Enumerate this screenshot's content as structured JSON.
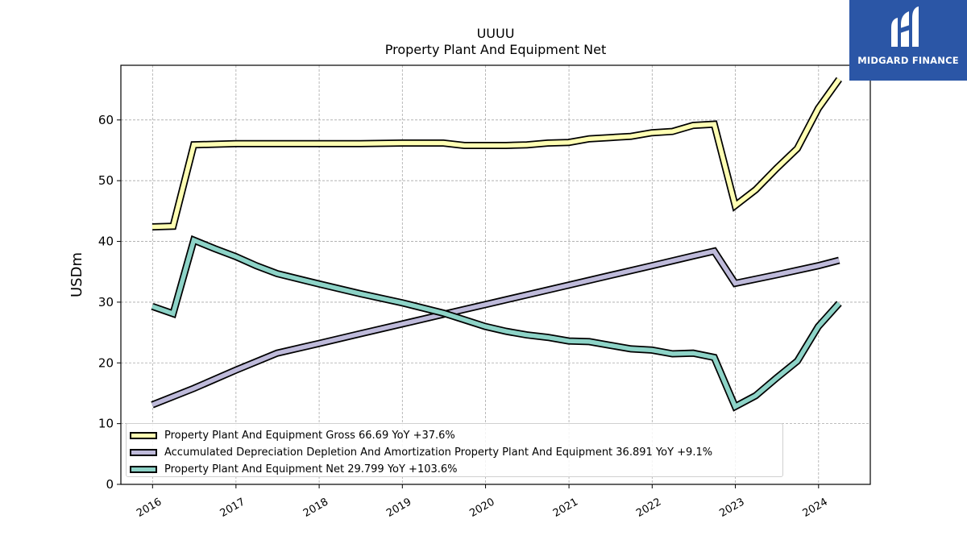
{
  "logo": {
    "text": "MIDGARD FINANCE"
  },
  "chart_data": {
    "type": "line",
    "title": "UUUU",
    "subtitle": "Property Plant And Equipment Net",
    "ylabel": "USDm",
    "xlabel": "",
    "ylim": [
      0,
      69
    ],
    "xlim": [
      "2015-08-15",
      "2024-08-15"
    ],
    "yticks": [
      0,
      10,
      20,
      30,
      40,
      50,
      60
    ],
    "xticks": [
      "2016",
      "2017",
      "2018",
      "2019",
      "2020",
      "2021",
      "2022",
      "2023",
      "2024"
    ],
    "grid": true,
    "legend_position": "bottom-left",
    "series": [
      {
        "name": "Property Plant And Equipment Gross",
        "legend_label": "Property Plant And Equipment Gross  66.69 YoY +37.6%",
        "color": "#ffffb3",
        "points": [
          [
            "2015-12-31",
            42.4
          ],
          [
            "2016-03-31",
            42.5
          ],
          [
            "2016-06-30",
            55.9
          ],
          [
            "2016-09-30",
            56.0
          ],
          [
            "2016-12-31",
            56.1
          ],
          [
            "2017-06-30",
            56.1
          ],
          [
            "2017-12-31",
            56.1
          ],
          [
            "2018-06-30",
            56.1
          ],
          [
            "2018-12-31",
            56.2
          ],
          [
            "2019-06-30",
            56.2
          ],
          [
            "2019-09-30",
            55.8
          ],
          [
            "2019-12-31",
            55.8
          ],
          [
            "2020-03-31",
            55.8
          ],
          [
            "2020-06-30",
            55.9
          ],
          [
            "2020-09-30",
            56.2
          ],
          [
            "2020-12-31",
            56.3
          ],
          [
            "2021-03-31",
            56.9
          ],
          [
            "2021-06-30",
            57.1
          ],
          [
            "2021-09-30",
            57.3
          ],
          [
            "2021-12-31",
            57.9
          ],
          [
            "2022-03-31",
            58.1
          ],
          [
            "2022-06-30",
            59.1
          ],
          [
            "2022-09-30",
            59.3
          ],
          [
            "2022-12-31",
            45.9
          ],
          [
            "2023-03-31",
            48.5
          ],
          [
            "2023-06-30",
            52.0
          ],
          [
            "2023-09-30",
            55.3
          ],
          [
            "2023-12-31",
            61.9
          ],
          [
            "2024-03-31",
            66.69
          ]
        ]
      },
      {
        "name": "Accumulated Depreciation Depletion And Amortization Property Plant And Equipment",
        "legend_label": "Accumulated Depreciation Depletion And Amortization Property Plant And Equipment  36.891 YoY +9.1%",
        "color": "#bebada",
        "points": [
          [
            "2015-12-31",
            13.1
          ],
          [
            "2016-06-30",
            15.8
          ],
          [
            "2016-12-31",
            18.8
          ],
          [
            "2017-06-30",
            21.6
          ],
          [
            "2017-12-31",
            23.2
          ],
          [
            "2018-06-30",
            24.8
          ],
          [
            "2018-12-31",
            26.4
          ],
          [
            "2019-06-30",
            28.0
          ],
          [
            "2019-12-31",
            29.6
          ],
          [
            "2020-06-30",
            31.2
          ],
          [
            "2020-12-31",
            32.8
          ],
          [
            "2021-06-30",
            34.4
          ],
          [
            "2021-12-31",
            36.0
          ],
          [
            "2022-06-30",
            37.6
          ],
          [
            "2022-09-30",
            38.4
          ],
          [
            "2022-12-31",
            33.1
          ],
          [
            "2023-06-30",
            34.5
          ],
          [
            "2023-12-31",
            36.0
          ],
          [
            "2024-03-31",
            36.891
          ]
        ]
      },
      {
        "name": "Property Plant And Equipment Net",
        "legend_label": "Property Plant And Equipment Net  29.799 YoY +103.6%",
        "color": "#8dd3c7",
        "points": [
          [
            "2015-12-31",
            29.3
          ],
          [
            "2016-03-31",
            28.1
          ],
          [
            "2016-06-30",
            40.2
          ],
          [
            "2016-09-30",
            38.8
          ],
          [
            "2016-12-31",
            37.5
          ],
          [
            "2017-03-31",
            36.0
          ],
          [
            "2017-06-30",
            34.7
          ],
          [
            "2017-12-31",
            33.0
          ],
          [
            "2018-06-30",
            31.4
          ],
          [
            "2018-12-31",
            29.9
          ],
          [
            "2019-06-30",
            28.2
          ],
          [
            "2019-09-30",
            27.1
          ],
          [
            "2019-12-31",
            26.0
          ],
          [
            "2020-03-31",
            25.2
          ],
          [
            "2020-06-30",
            24.6
          ],
          [
            "2020-09-30",
            24.2
          ],
          [
            "2020-12-31",
            23.6
          ],
          [
            "2021-03-31",
            23.5
          ],
          [
            "2021-06-30",
            22.9
          ],
          [
            "2021-09-30",
            22.3
          ],
          [
            "2021-12-31",
            22.1
          ],
          [
            "2022-03-31",
            21.5
          ],
          [
            "2022-06-30",
            21.6
          ],
          [
            "2022-09-30",
            20.9
          ],
          [
            "2022-12-31",
            12.8
          ],
          [
            "2023-03-31",
            14.6
          ],
          [
            "2023-06-30",
            17.5
          ],
          [
            "2023-09-30",
            20.3
          ],
          [
            "2023-12-31",
            26.0
          ],
          [
            "2024-03-31",
            29.799
          ]
        ]
      }
    ]
  }
}
